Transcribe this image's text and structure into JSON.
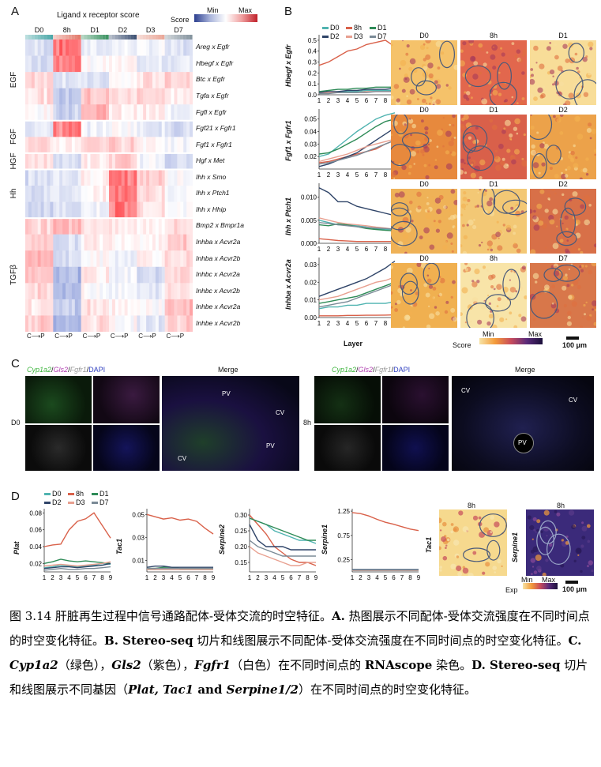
{
  "panelA": {
    "letter": "A",
    "title": "Ligand x receptor score",
    "score_label": "Score",
    "min_label": "Min",
    "max_label": "Max",
    "timepoints": [
      "D0",
      "8h",
      "D1",
      "D2",
      "D3",
      "D7"
    ],
    "axis_tick": "C⟶P",
    "groups": [
      "EGF",
      "FGF",
      "HGF",
      "Hh",
      "TGFβ"
    ],
    "rows": [
      "Areg x Egfr",
      "Hbegf x Egfr",
      "Btc x Egfr",
      "Tgfa x Egfr",
      "Fgfl x Egfr",
      "Fgf21 x Fgfr1",
      "Fgf1 x Fgfr1",
      "Hgf x Met",
      "Ihh x Smo",
      "Ihh x Ptch1",
      "Ihh x Hhip",
      "Bmp2 x Bmpr1a",
      "Inhba x Acvr2a",
      "Inhba x Acvr2b",
      "Inhbc x Acvr2a",
      "Inhbc x Acvr2b",
      "Inhbe x Acvr2a",
      "Inhbe x Acvr2b"
    ]
  },
  "panelB": {
    "letter": "B",
    "legend": [
      "D0",
      "8h",
      "D1",
      "D2",
      "D3",
      "D7"
    ],
    "colors": {
      "D0": "#4fb3b0",
      "8h": "#d9614a",
      "D1": "#2e8b57",
      "D2": "#2f4468",
      "D3": "#e8a090",
      "D7": "#7a8a96"
    },
    "rows": [
      {
        "ylabel": "Hbegf x Egfr",
        "ticks": [
          "0.0",
          "0.1",
          "0.2",
          "0.3",
          "0.4",
          "0.5"
        ],
        "maps": [
          "D0",
          "8h",
          "D1"
        ]
      },
      {
        "ylabel": "Fgf1 x Fgfr1",
        "ticks": [
          "0.02",
          "0.03",
          "0.04",
          "0.05"
        ],
        "maps": [
          "D0",
          "D1",
          "D2"
        ]
      },
      {
        "ylabel": "Ihh x Ptch1",
        "ticks": [
          "0.000",
          "0.005",
          "0.010"
        ],
        "maps": [
          "D0",
          "D1",
          "D2"
        ]
      },
      {
        "ylabel": "Inhba x Acvr2a",
        "ticks": [
          "0.00",
          "0.01",
          "0.02",
          "0.03"
        ],
        "maps": [
          "D0",
          "8h",
          "D7"
        ]
      }
    ],
    "x_ticks": "123456789",
    "xlabel": "Layer",
    "score_label": "Score",
    "min_label": "Min",
    "max_label": "Max",
    "scale_label": "100 μm"
  },
  "panelC": {
    "letter": "C",
    "channels": {
      "a": "Cyp1a2",
      "b": "Gls2",
      "c": "Fgfr1",
      "d": "DAPI"
    },
    "merge": "Merge",
    "left_time": "D0",
    "right_time": "8h",
    "left_markers": [
      "PV",
      "CV",
      "PV",
      "CV"
    ],
    "right_markers": [
      "CV",
      "CV",
      "PV"
    ]
  },
  "panelD": {
    "letter": "D",
    "legend": [
      "D0",
      "8h",
      "D1",
      "D2",
      "D3",
      "D7"
    ],
    "plots": [
      {
        "ylabel": "Plat",
        "ticks": [
          "0.02",
          "0.04",
          "0.06",
          "0.08"
        ]
      },
      {
        "ylabel": "Tac1",
        "ticks": [
          "0.01",
          "0.03",
          "0.05"
        ]
      },
      {
        "ylabel": "Serpine2",
        "ticks": [
          "0.15",
          "0.20",
          "0.25",
          "0.30"
        ]
      },
      {
        "ylabel": "Serpine1",
        "ticks": [
          "0.25",
          "0.75",
          "1.25"
        ]
      }
    ],
    "x_ticks": "123456789",
    "maps": [
      {
        "title": "8h",
        "gene": "Tac1"
      },
      {
        "title": "8h",
        "gene": "Serpine1"
      }
    ],
    "exp_label": "Exp",
    "min_label": "Min",
    "max_label": "Max",
    "scale_label": "100 μm"
  },
  "caption": {
    "p1": "图 3.14 肝脏再生过程中信号通路配体-受体交流的时空特征。",
    "p2": "A.",
    "p3": " 热图展示不同配体-受体交流强度在不同时间点的时空变化特征。",
    "p4": "B. Stereo-seq",
    "p5": " 切片和线图展示不同配体-受体交流强度在不同时间点的时空变化特征。",
    "p6": "C.",
    "p7": "Cyp1a2",
    "p8": "（绿色），",
    "p9": "Gls2",
    "p10": "（紫色），",
    "p11": "Fgfr1",
    "p12": "（白色）在不同时间点的",
    "p13": "RNAscope",
    "p14": " 染色。",
    "p15": "D. Stereo-seq",
    "p16": " 切片和线图展示不同基因（",
    "p17": "Plat, Tac1",
    "p18": " and ",
    "p19": "Serpine1/2",
    "p20": "）在不同时间点的时空变化特征。"
  }
}
